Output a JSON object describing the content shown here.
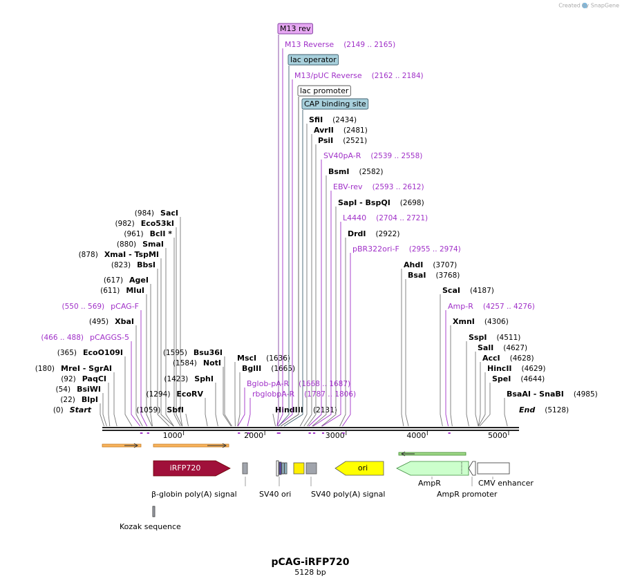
{
  "header": {
    "credit": "Created by SnapGene"
  },
  "map": {
    "title": "pCAG-iRFP720",
    "length": 5128,
    "length_label": "5128 bp",
    "ticks": [
      1000,
      2000,
      3000,
      4000,
      5000
    ],
    "sites": [
      {
        "name": "SacI",
        "position": 984,
        "position_label": "(984)"
      },
      {
        "name": "Eco53kI",
        "position": 982,
        "position_label": "(982)"
      },
      {
        "name": "BclI *",
        "position": 961,
        "position_label": "(961)"
      },
      {
        "name": "SmaI",
        "position": 880,
        "position_label": "(880)"
      },
      {
        "name": "XmaI  -  TspMI",
        "position": 878,
        "position_label": "(878)"
      },
      {
        "name": "BbsI",
        "position": 823,
        "position_label": "(823)"
      },
      {
        "name": "AgeI",
        "position": 617,
        "position_label": "(617)"
      },
      {
        "name": "MluI",
        "position": 611,
        "position_label": "(611)"
      },
      {
        "name": "XbaI",
        "position": 495,
        "position_label": "(495)"
      },
      {
        "name": "EcoO109I",
        "position": 365,
        "position_label": "(365)"
      },
      {
        "name": "MreI  -  SgrAI",
        "position": 180,
        "position_label": "(180)"
      },
      {
        "name": "PaqCI",
        "position": 92,
        "position_label": "(92)"
      },
      {
        "name": "BsiWI",
        "position": 54,
        "position_label": "(54)"
      },
      {
        "name": "BlpI",
        "position": 22,
        "position_label": "(22)"
      },
      {
        "name": "Start",
        "position": 0,
        "position_label": "(0)"
      },
      {
        "name": "Bsu36I",
        "position": 1595,
        "position_label": "(1595)"
      },
      {
        "name": "NotI",
        "position": 1584,
        "position_label": "(1584)"
      },
      {
        "name": "SphI",
        "position": 1423,
        "position_label": "(1423)"
      },
      {
        "name": "EcoRV",
        "position": 1294,
        "position_label": "(1294)"
      },
      {
        "name": "SbfI",
        "position": 1059,
        "position_label": "(1059)"
      },
      {
        "name": "MscI",
        "position": 1636,
        "position_label": "(1636)"
      },
      {
        "name": "BglII",
        "position": 1665,
        "position_label": "(1665)"
      },
      {
        "name": "HindIII",
        "position": 2131,
        "position_label": "(2131)"
      },
      {
        "name": "SfiI",
        "position": 2434,
        "position_label": "(2434)"
      },
      {
        "name": "AvrII",
        "position": 2481,
        "position_label": "(2481)"
      },
      {
        "name": "PsiI",
        "position": 2521,
        "position_label": "(2521)"
      },
      {
        "name": "BsmI",
        "position": 2582,
        "position_label": "(2582)"
      },
      {
        "name": "SapI  -  BspQI",
        "position": 2698,
        "position_label": "(2698)"
      },
      {
        "name": "DrdI",
        "position": 2922,
        "position_label": "(2922)"
      },
      {
        "name": "AhdI",
        "position": 3707,
        "position_label": "(3707)"
      },
      {
        "name": "BsaI",
        "position": 3768,
        "position_label": "(3768)"
      },
      {
        "name": "ScaI",
        "position": 4187,
        "position_label": "(4187)"
      },
      {
        "name": "XmnI",
        "position": 4306,
        "position_label": "(4306)"
      },
      {
        "name": "SspI",
        "position": 4511,
        "position_label": "(4511)"
      },
      {
        "name": "SalI",
        "position": 4627,
        "position_label": "(4627)"
      },
      {
        "name": "AccI",
        "position": 4628,
        "position_label": "(4628)"
      },
      {
        "name": "HincII",
        "position": 4629,
        "position_label": "(4629)"
      },
      {
        "name": "SpeI",
        "position": 4644,
        "position_label": "(4644)"
      },
      {
        "name": "BsaAI  -  SnaBI",
        "position": 4985,
        "position_label": "(4985)"
      },
      {
        "name": "End",
        "position": 5128,
        "position_label": "(5128)"
      }
    ],
    "primers": [
      {
        "name": "pCAG-F",
        "start": 550,
        "end": 569,
        "range_label": "(550 .. 569)"
      },
      {
        "name": "pCAGGS-5",
        "start": 466,
        "end": 488,
        "range_label": "(466 .. 488)"
      },
      {
        "name": "Bglob-pA-R",
        "start": 1668,
        "end": 1687,
        "range_label": "(1668 .. 1687)"
      },
      {
        "name": "rbglobpA-R",
        "start": 1787,
        "end": 1806,
        "range_label": "(1787 .. 1806)"
      },
      {
        "name": "M13 Reverse",
        "start": 2149,
        "end": 2165,
        "range_label": "(2149 .. 2165)"
      },
      {
        "name": "M13/pUC Reverse",
        "start": 2162,
        "end": 2184,
        "range_label": "(2162 .. 2184)"
      },
      {
        "name": "SV40pA-R",
        "start": 2539,
        "end": 2558,
        "range_label": "(2539 .. 2558)"
      },
      {
        "name": "EBV-rev",
        "start": 2593,
        "end": 2612,
        "range_label": "(2593 .. 2612)"
      },
      {
        "name": "L4440",
        "start": 2704,
        "end": 2721,
        "range_label": "(2704 .. 2721)"
      },
      {
        "name": "pBR322ori-F",
        "start": 2955,
        "end": 2974,
        "range_label": "(2955 .. 2974)"
      },
      {
        "name": "Amp-R",
        "start": 4257,
        "end": 4276,
        "range_label": "(4257 .. 4276)"
      }
    ],
    "top_features": [
      "M13 rev",
      "lac operator",
      "lac promoter",
      "CAP binding site"
    ],
    "features": [
      "iRFP720",
      "ori",
      "β-globin poly(A) signal",
      "SV40 ori",
      "SV40 poly(A) signal",
      "AmpR",
      "AmpR promoter",
      "CMV enhancer",
      "Kozak sequence"
    ]
  }
}
